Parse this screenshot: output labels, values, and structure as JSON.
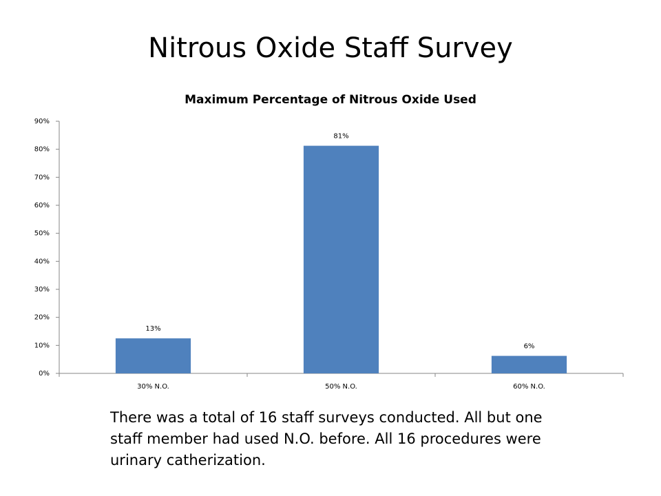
{
  "slide": {
    "title": "Nitrous Oxide Staff Survey",
    "body_lines": [
      "There was a total of 16 staff surveys conducted.  All but one",
      "staff member had used N.O. before.  All 16 procedures were",
      "urinary catherization."
    ]
  },
  "chart_data": {
    "type": "bar",
    "title": "Maximum Percentage of Nitrous Oxide Used",
    "categories": [
      "30% N.O.",
      "50% N.O.",
      "60% N.O."
    ],
    "values": [
      12.5,
      81.25,
      6.25
    ],
    "value_labels": [
      "13%",
      "81%",
      "6%"
    ],
    "color": "#4f81bd",
    "ylim": [
      0,
      90
    ],
    "yticks": [
      {
        "value": 0,
        "label": "0%"
      },
      {
        "value": 10,
        "label": "10%"
      },
      {
        "value": 20,
        "label": "20%"
      },
      {
        "value": 30,
        "label": "30%"
      },
      {
        "value": 40,
        "label": "40%"
      },
      {
        "value": 50,
        "label": "50%"
      },
      {
        "value": 60,
        "label": "60%"
      },
      {
        "value": 70,
        "label": "70%"
      },
      {
        "value": 80,
        "label": "80%"
      },
      {
        "value": 90,
        "label": "90%"
      }
    ],
    "grid": false
  }
}
